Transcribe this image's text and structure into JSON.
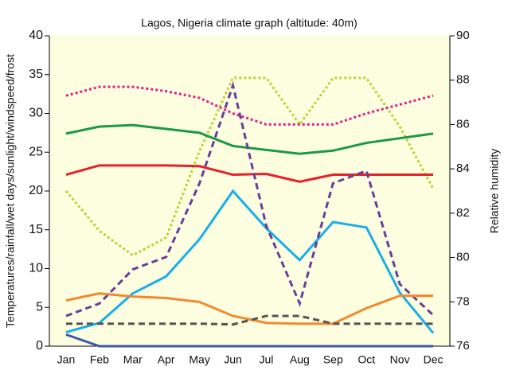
{
  "chart_data": {
    "type": "line",
    "title": "Lagos, Nigeria climate graph (altitude: 40m)",
    "ylabel": "Temperatures/rainfall/wet days/sunlight/windspeed/frost",
    "y2label": "Relative humidity",
    "categories": [
      "Jan",
      "Feb",
      "Mar",
      "Apr",
      "May",
      "Jun",
      "Jul",
      "Aug",
      "Sep",
      "Oct",
      "Nov",
      "Dec"
    ],
    "ylim": [
      0,
      40
    ],
    "yticks": [
      0,
      5,
      10,
      15,
      20,
      25,
      30,
      35,
      40
    ],
    "y2lim": [
      76,
      90
    ],
    "y2ticks": [
      76,
      78,
      80,
      82,
      84,
      86,
      88,
      90
    ],
    "series": [
      {
        "color": "#b8d430",
        "style": "dotted",
        "axis": "y2",
        "values": [
          83.0,
          81.2,
          80.1,
          80.9,
          84.8,
          88.1,
          88.1,
          86.0,
          88.1,
          88.1,
          85.9,
          83.1
        ]
      },
      {
        "color": "#e0208a",
        "style": "dotted",
        "axis": "y2",
        "values": [
          87.3,
          87.7,
          87.7,
          87.5,
          87.2,
          86.5,
          86.0,
          86.0,
          86.0,
          86.5,
          86.9,
          87.3
        ]
      },
      {
        "color": "#1a9a46",
        "style": "solid",
        "values": [
          27.4,
          28.3,
          28.5,
          28.0,
          27.5,
          25.8,
          25.3,
          24.8,
          25.2,
          26.2,
          26.8,
          27.4
        ]
      },
      {
        "color": "#e8202a",
        "style": "solid",
        "values": [
          22.1,
          23.3,
          23.3,
          23.3,
          23.2,
          22.1,
          22.2,
          21.2,
          22.1,
          22.1,
          22.1,
          22.1
        ]
      },
      {
        "color": "#19aee8",
        "style": "solid",
        "values": [
          1.8,
          3.0,
          6.8,
          9.0,
          13.8,
          20.0,
          15.2,
          11.1,
          16.0,
          15.3,
          6.9,
          1.7
        ]
      },
      {
        "color": "#6a3d9a",
        "style": "dashed",
        "values": [
          3.9,
          5.5,
          9.9,
          11.5,
          21.0,
          33.6,
          15.5,
          5.5,
          21.0,
          22.6,
          8.0,
          4.0
        ]
      },
      {
        "color": "#f08a30",
        "style": "solid",
        "values": [
          5.9,
          6.8,
          6.4,
          6.2,
          5.7,
          3.9,
          3.0,
          2.9,
          2.9,
          4.9,
          6.5,
          6.5
        ]
      },
      {
        "color": "#555555",
        "style": "dashed",
        "values": [
          2.9,
          2.9,
          2.9,
          2.9,
          2.9,
          2.8,
          3.9,
          3.9,
          2.9,
          2.9,
          2.9,
          2.9
        ]
      },
      {
        "color": "#3c5aa8",
        "style": "solid",
        "values": [
          1.5,
          0,
          0,
          0,
          0,
          0,
          0,
          0,
          0,
          0,
          0,
          0
        ]
      }
    ]
  }
}
